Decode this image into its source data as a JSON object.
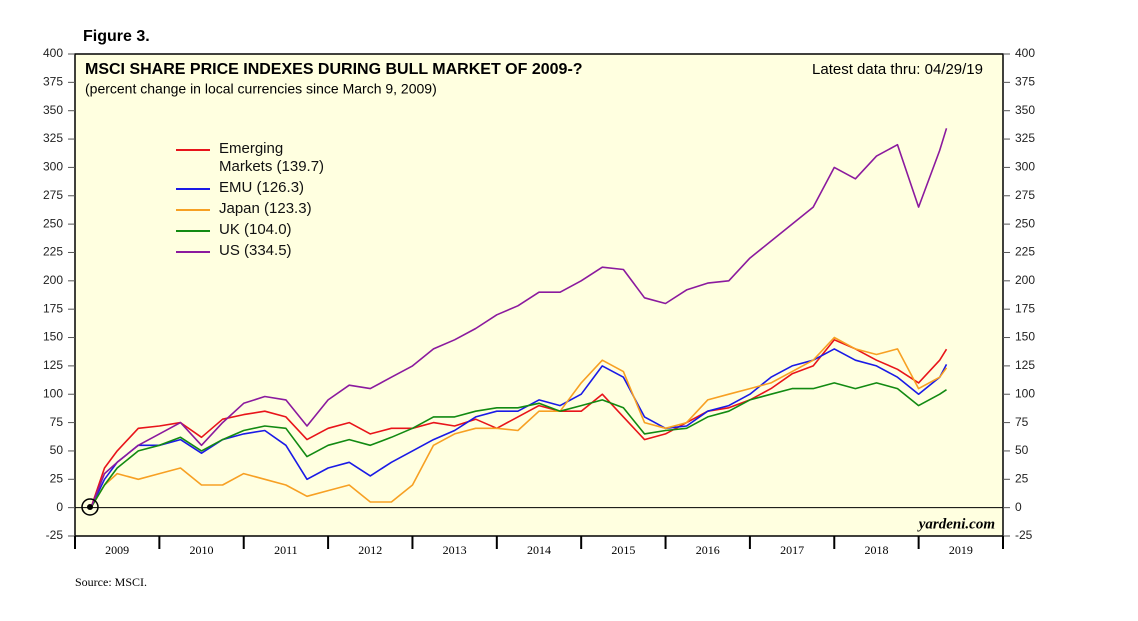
{
  "figure_label": "Figure 3.",
  "source": "Source: MSCI.",
  "chart_data": {
    "type": "line",
    "title": "MSCI SHARE PRICE INDEXES DURING BULL MARKET OF 2009-?",
    "subtitle": "(percent change in local currencies since March 9, 2009)",
    "note": "Latest data thru: 04/29/19",
    "watermark": "yardeni.com",
    "x": [
      2009.19,
      2009.35,
      2009.5,
      2009.75,
      2010.0,
      2010.25,
      2010.5,
      2010.75,
      2011.0,
      2011.25,
      2011.5,
      2011.75,
      2012.0,
      2012.25,
      2012.5,
      2012.75,
      2013.0,
      2013.25,
      2013.5,
      2013.75,
      2014.0,
      2014.25,
      2014.5,
      2014.75,
      2015.0,
      2015.25,
      2015.5,
      2015.75,
      2016.0,
      2016.25,
      2016.5,
      2016.75,
      2017.0,
      2017.25,
      2017.5,
      2017.75,
      2018.0,
      2018.25,
      2018.5,
      2018.75,
      2019.0,
      2019.25,
      2019.33
    ],
    "xlim": [
      2009,
      2020
    ],
    "xticks": [
      2009,
      2010,
      2011,
      2012,
      2013,
      2014,
      2015,
      2016,
      2017,
      2018,
      2019,
      2020
    ],
    "year_labels": [
      "2009",
      "2010",
      "2011",
      "2012",
      "2013",
      "2014",
      "2015",
      "2016",
      "2017",
      "2018",
      "2019"
    ],
    "ylim": [
      -25,
      400
    ],
    "yticks": [
      -25,
      0,
      25,
      50,
      75,
      100,
      125,
      150,
      175,
      200,
      225,
      250,
      275,
      300,
      325,
      350,
      375,
      400
    ],
    "series": [
      {
        "name": "Emerging Markets (139.7)",
        "color": "#e8141a",
        "values": [
          0,
          35,
          50,
          70,
          72,
          75,
          62,
          78,
          82,
          85,
          80,
          60,
          70,
          75,
          65,
          70,
          70,
          75,
          72,
          78,
          70,
          80,
          90,
          85,
          85,
          100,
          80,
          60,
          65,
          75,
          85,
          88,
          95,
          105,
          118,
          125,
          148,
          140,
          130,
          122,
          110,
          130,
          139.7
        ]
      },
      {
        "name": "EMU (126.3)",
        "color": "#1a1ae6",
        "values": [
          0,
          25,
          40,
          55,
          55,
          60,
          48,
          60,
          65,
          68,
          55,
          25,
          35,
          40,
          28,
          40,
          50,
          60,
          68,
          80,
          85,
          85,
          95,
          90,
          100,
          125,
          115,
          80,
          70,
          72,
          85,
          90,
          100,
          115,
          125,
          130,
          140,
          130,
          125,
          115,
          100,
          115,
          126.3
        ]
      },
      {
        "name": "Japan (123.3)",
        "color": "#f7a023",
        "values": [
          0,
          20,
          30,
          25,
          30,
          35,
          20,
          20,
          30,
          25,
          20,
          10,
          15,
          20,
          5,
          5,
          20,
          55,
          65,
          70,
          70,
          68,
          85,
          85,
          110,
          130,
          120,
          75,
          70,
          75,
          95,
          100,
          105,
          110,
          120,
          130,
          150,
          140,
          135,
          140,
          105,
          115,
          123.3
        ]
      },
      {
        "name": "UK (104.0)",
        "color": "#128a12",
        "values": [
          0,
          20,
          35,
          50,
          55,
          62,
          50,
          60,
          68,
          72,
          70,
          45,
          55,
          60,
          55,
          62,
          70,
          80,
          80,
          85,
          88,
          88,
          92,
          85,
          90,
          95,
          88,
          65,
          68,
          70,
          80,
          85,
          95,
          100,
          105,
          105,
          110,
          105,
          110,
          105,
          90,
          100,
          104.0
        ]
      },
      {
        "name": "US (334.5)",
        "color": "#8b1a9e",
        "values": [
          0,
          30,
          40,
          55,
          65,
          75,
          55,
          75,
          92,
          98,
          95,
          72,
          95,
          108,
          105,
          115,
          125,
          140,
          148,
          158,
          170,
          178,
          190,
          190,
          200,
          212,
          210,
          185,
          180,
          192,
          198,
          200,
          220,
          235,
          250,
          265,
          300,
          290,
          310,
          320,
          265,
          315,
          334.5
        ]
      }
    ]
  }
}
